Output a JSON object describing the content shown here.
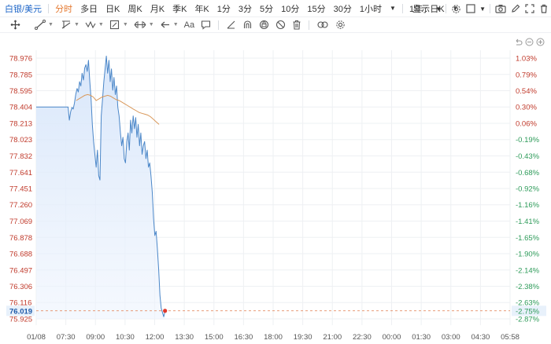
{
  "toolbar": {
    "symbol": "白银/美元",
    "periods": [
      "分时",
      "多日",
      "日K",
      "周K",
      "月K",
      "季K",
      "年K",
      "1分",
      "3分",
      "5分",
      "10分",
      "15分",
      "30分",
      "1小时"
    ],
    "active_period": "分时",
    "range_select": "1年 : 日K",
    "display_label": "显示"
  },
  "colors": {
    "price_line": "#4a86c8",
    "area_fill": "#dbe8fb",
    "avg_line": "#d9985a",
    "up_text": "#c03a2b",
    "down_text": "#2e9b5a",
    "current_label_bg": "#e8f1fb",
    "dashed_line": "#e07a4a"
  },
  "icons": {
    "toolbar_right": [
      "gear-icon",
      "checkbox-icon",
      "camera-icon",
      "pencil-icon",
      "fullscreen-icon",
      "trash-icon"
    ],
    "drawing_tools": [
      "crosshair-icon",
      "trend-line-icon",
      "pitchfork-icon",
      "wave-icon",
      "measure-icon",
      "fib-icon",
      "arrow-icon",
      "text-icon",
      "comment-icon",
      "ruler-icon",
      "magnet-icon",
      "lock-icon",
      "eye-off-icon",
      "delete-icon",
      "link-icon",
      "settings-icon"
    ],
    "zoom_tools": [
      "undo-icon",
      "zoom-out-icon",
      "zoom-in-icon"
    ]
  },
  "chart_data": {
    "type": "line",
    "y_ticks": [
      "78.976",
      "78.785",
      "78.595",
      "78.404",
      "78.213",
      "78.023",
      "77.832",
      "77.641",
      "77.451",
      "77.260",
      "77.069",
      "76.878",
      "76.688",
      "76.497",
      "76.306",
      "76.116",
      "75.925"
    ],
    "pct_ticks": [
      "1.03%",
      "0.79%",
      "0.54%",
      "0.30%",
      "0.06%",
      "-0.19%",
      "-0.43%",
      "-0.68%",
      "-0.92%",
      "-1.16%",
      "-1.41%",
      "-1.65%",
      "-1.90%",
      "-2.14%",
      "-2.38%",
      "-2.63%",
      "-2.87%"
    ],
    "x_ticks": [
      "01/08",
      "07:30",
      "09:00",
      "10:30",
      "12:00",
      "13:30",
      "15:00",
      "16:30",
      "18:00",
      "19:30",
      "21:00",
      "22:30",
      "00:00",
      "01:30",
      "03:00",
      "04:30",
      "05:58"
    ],
    "ylim": [
      75.925,
      78.976
    ],
    "current_price": "76.019",
    "current_pct": "-2.75%",
    "series": [
      {
        "values": [
          78.404,
          78.404,
          78.404,
          78.404,
          78.404,
          78.404,
          78.404,
          78.404,
          78.404,
          78.404,
          78.404,
          78.404,
          78.404,
          78.404,
          78.404,
          78.404,
          78.404,
          78.404,
          78.404,
          78.404,
          78.404,
          78.404,
          78.404,
          78.404,
          78.404,
          78.404,
          78.25,
          78.35,
          78.4,
          78.38,
          78.45,
          78.55,
          78.62,
          78.58,
          78.7,
          78.65,
          78.8,
          78.72,
          78.86,
          78.9,
          78.82,
          78.95,
          78.7,
          78.5,
          78.2,
          78.0,
          77.85,
          77.7,
          77.9,
          77.6,
          77.55,
          78.3,
          78.5,
          78.7,
          78.85,
          79.0,
          78.8,
          78.95,
          78.7,
          78.85,
          78.6,
          78.75,
          78.55,
          78.65,
          78.4,
          78.3,
          78.1,
          77.95,
          78.05,
          77.8,
          77.75,
          78.0,
          78.1,
          77.9,
          78.25,
          78.1,
          78.3,
          78.15,
          78.28,
          78.05,
          78.2,
          77.95,
          78.1,
          77.85,
          77.95,
          78.0,
          77.8,
          77.9,
          77.7,
          77.75,
          77.6,
          77.4,
          77.1,
          76.9,
          76.95,
          76.75,
          76.5,
          76.2,
          76.05,
          76.0,
          75.95,
          76.019
        ]
      },
      {
        "values": [
          78.48,
          78.5,
          78.52,
          78.54,
          78.55,
          78.54,
          78.52,
          78.48,
          78.5,
          78.52,
          78.53,
          78.54,
          78.53,
          78.51,
          78.49,
          78.48,
          78.46,
          78.44,
          78.42,
          78.4,
          78.38,
          78.36,
          78.34,
          78.33,
          78.32,
          78.31,
          78.29,
          78.26,
          78.23,
          78.2
        ]
      }
    ]
  }
}
